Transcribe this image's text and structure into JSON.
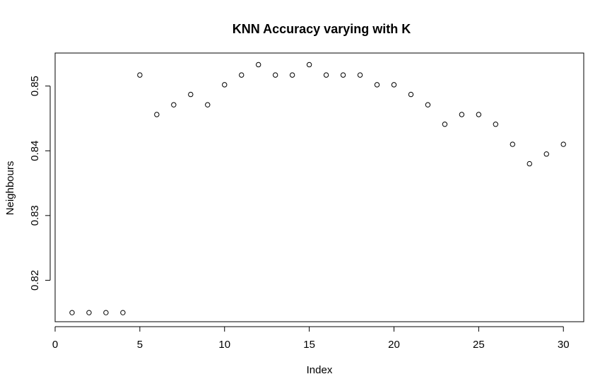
{
  "chart_data": {
    "type": "scatter",
    "title": "KNN Accuracy varying with K",
    "xlabel": "Index",
    "ylabel": "Neighbours",
    "x": [
      1,
      2,
      3,
      4,
      5,
      6,
      7,
      8,
      9,
      10,
      11,
      12,
      13,
      14,
      15,
      16,
      17,
      18,
      19,
      20,
      21,
      22,
      23,
      24,
      25,
      26,
      27,
      28,
      29,
      30
    ],
    "y": [
      0.815,
      0.815,
      0.815,
      0.815,
      0.8517,
      0.8456,
      0.8471,
      0.8487,
      0.8471,
      0.8502,
      0.8517,
      0.8533,
      0.8517,
      0.8517,
      0.8533,
      0.8517,
      0.8517,
      0.8517,
      0.8502,
      0.8502,
      0.8487,
      0.8471,
      0.8441,
      0.8456,
      0.8456,
      0.8441,
      0.841,
      0.838,
      0.8395,
      0.841
    ],
    "xticks": [
      0,
      5,
      10,
      15,
      20,
      25,
      30
    ],
    "xtick_labels": [
      "0",
      "5",
      "10",
      "15",
      "20",
      "25",
      "30"
    ],
    "yticks": [
      0.82,
      0.83,
      0.84,
      0.85
    ],
    "ytick_labels": [
      "0.82",
      "0.83",
      "0.84",
      "0.85"
    ],
    "xlim": [
      0,
      31.2
    ],
    "ylim": [
      0.8136,
      0.8551
    ],
    "grid": false,
    "marker": "open-circle",
    "point_color": "#000000"
  }
}
